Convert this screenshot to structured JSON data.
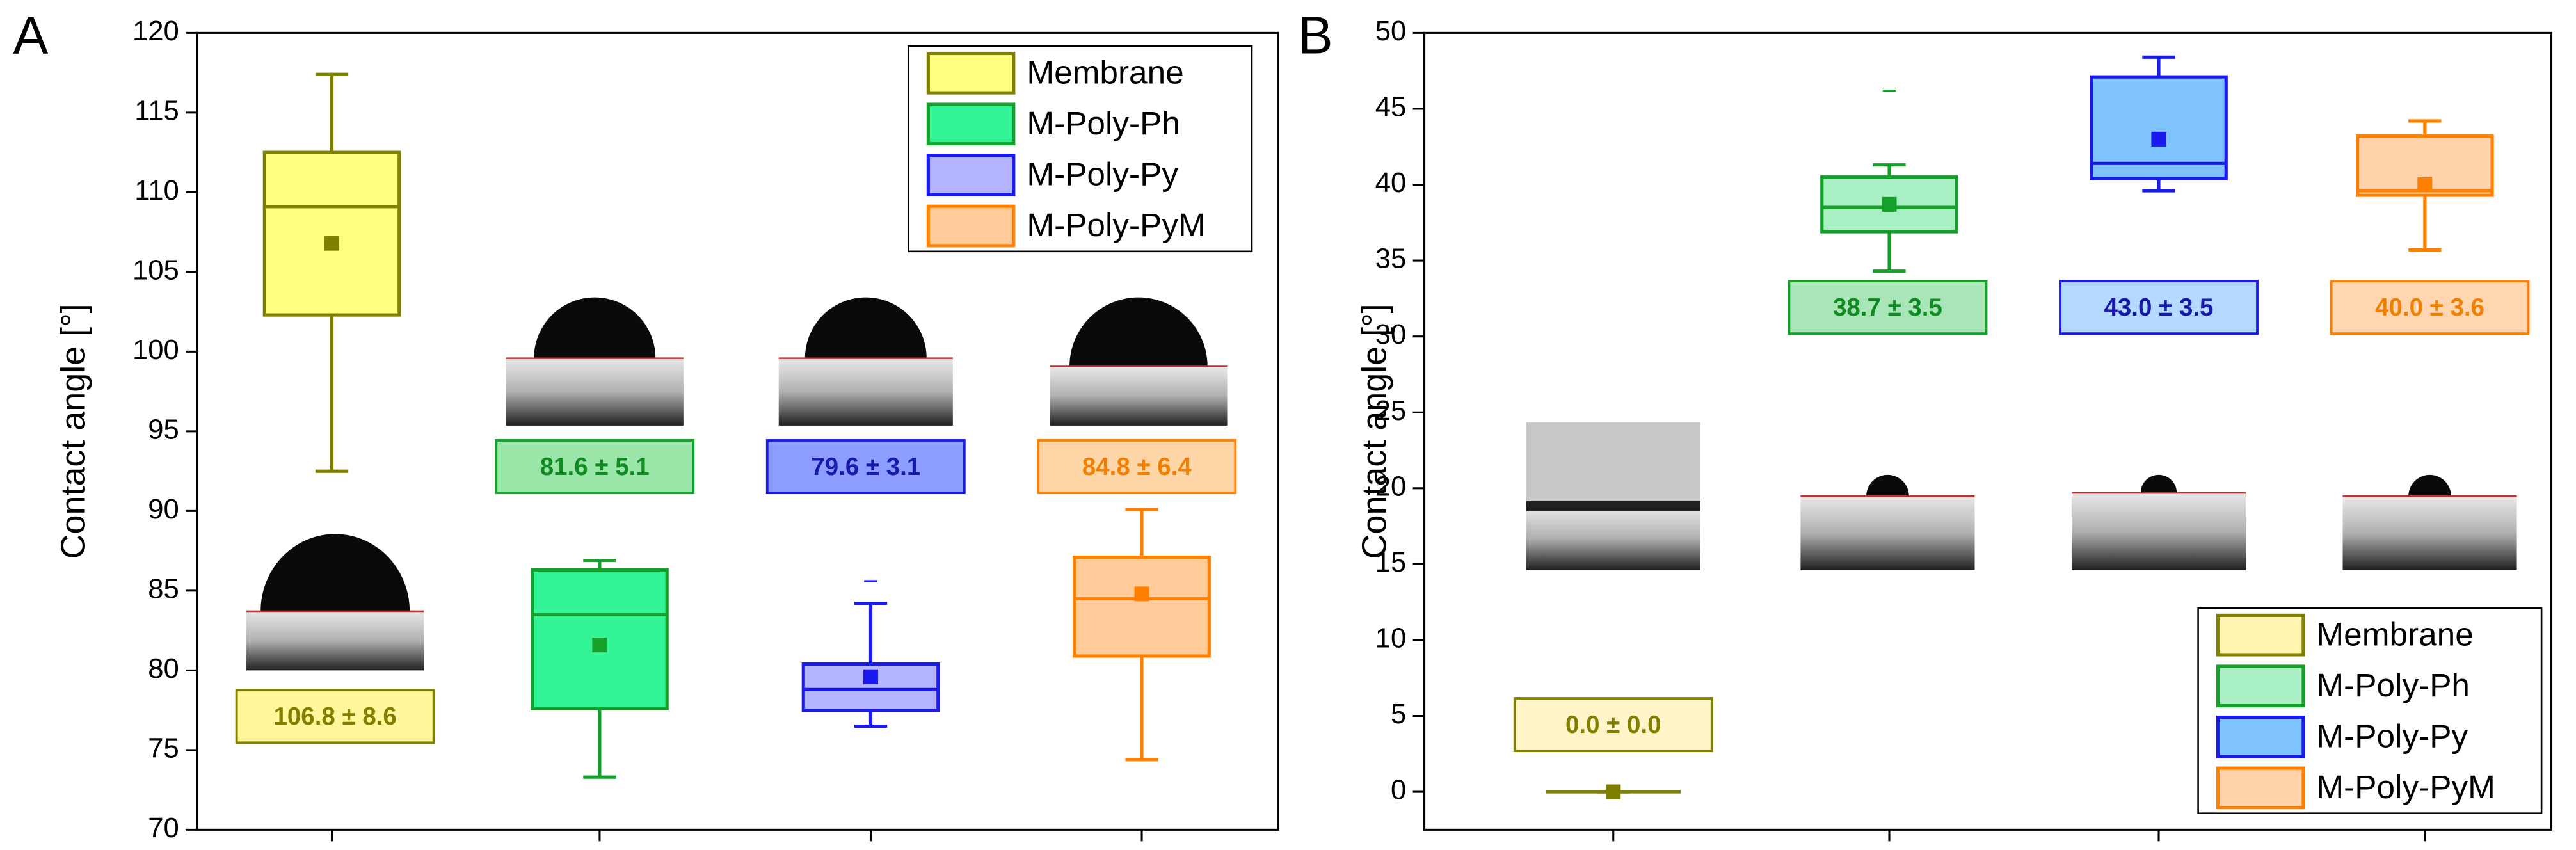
{
  "chart_data": [
    {
      "type": "box",
      "panel_label": "A",
      "ylabel": "Contact angle [°]",
      "ylim": [
        70,
        120
      ],
      "yticks": [
        70,
        75,
        80,
        85,
        90,
        95,
        100,
        105,
        110,
        115,
        120
      ],
      "legend": "upper right",
      "series": [
        {
          "name": "Membrane",
          "color": "#808000",
          "fill": "#ffff80",
          "label_fill": "#fff799",
          "label_color": "#808000",
          "whisker_low": 92.5,
          "q1": 102.3,
          "median": 109.1,
          "q3": 112.5,
          "whisker_high": 117.4,
          "mean": 106.8,
          "outliers": [],
          "mean_label": "106.8 ± 8.6"
        },
        {
          "name": "M-Poly-Ph",
          "color": "#14a02a",
          "fill": "#33f598",
          "label_fill": "#99e6a8",
          "label_color": "#118a22",
          "whisker_low": 73.3,
          "q1": 77.6,
          "median": 83.5,
          "q3": 86.3,
          "whisker_high": 86.9,
          "mean": 81.6,
          "outliers": [],
          "mean_label": "81.6 ± 5.1"
        },
        {
          "name": "M-Poly-Py",
          "color": "#1a1aee",
          "fill": "#b3b3ff",
          "label_fill": "#8c9cff",
          "label_color": "#1a1aaa",
          "whisker_low": 76.5,
          "q1": 77.5,
          "median": 78.8,
          "q3": 80.4,
          "whisker_high": 84.2,
          "mean": 79.6,
          "outliers": [
            85.6
          ],
          "mean_label": "79.6 ± 3.1"
        },
        {
          "name": "M-Poly-PyM",
          "color": "#ff8000",
          "fill": "#ffcc99",
          "label_fill": "#ffd6a8",
          "label_color": "#f08000",
          "whisker_low": 74.4,
          "q1": 80.9,
          "median": 84.5,
          "q3": 87.1,
          "whisker_high": 90.1,
          "mean": 84.8,
          "outliers": [],
          "mean_label": "84.8 ± 6.4"
        }
      ]
    },
    {
      "type": "box",
      "panel_label": "B",
      "ylabel": "Contact angle [°]",
      "ylim": [
        -2.5,
        50
      ],
      "yticks": [
        0,
        5,
        10,
        15,
        20,
        25,
        30,
        35,
        40,
        45,
        50
      ],
      "legend": "lower right",
      "series": [
        {
          "name": "Membrane",
          "color": "#808000",
          "fill": "#fff5b0",
          "label_fill": "#fff5c8",
          "label_color": "#808000",
          "whisker_low": 0,
          "q1": 0,
          "median": 0,
          "q3": 0,
          "whisker_high": 0,
          "mean": 0,
          "outliers": [],
          "mean_label": "0.0 ± 0.0"
        },
        {
          "name": "M-Poly-Ph",
          "color": "#14a02a",
          "fill": "#a8f0c4",
          "label_fill": "#a8e6b8",
          "label_color": "#118a22",
          "whisker_low": 34.3,
          "q1": 36.9,
          "median": 38.5,
          "q3": 40.5,
          "whisker_high": 41.3,
          "mean": 38.7,
          "outliers": [
            46.2
          ],
          "mean_label": "38.7 ± 3.5"
        },
        {
          "name": "M-Poly-Py",
          "color": "#1a1aee",
          "fill": "#80c4ff",
          "label_fill": "#b3d9ff",
          "label_color": "#1a1aaa",
          "whisker_low": 39.6,
          "q1": 40.4,
          "median": 41.4,
          "q3": 47.1,
          "whisker_high": 48.4,
          "mean": 43.0,
          "outliers": [],
          "mean_label": "43.0 ± 3.5"
        },
        {
          "name": "M-Poly-PyM",
          "color": "#ff8000",
          "fill": "#ffd2aa",
          "label_fill": "#ffd6b0",
          "label_color": "#f08000",
          "whisker_low": 35.7,
          "q1": 39.3,
          "median": 39.6,
          "q3": 43.2,
          "whisker_high": 44.2,
          "mean": 40.0,
          "outliers": [],
          "mean_label": "40.0 ± 3.6"
        }
      ]
    }
  ]
}
